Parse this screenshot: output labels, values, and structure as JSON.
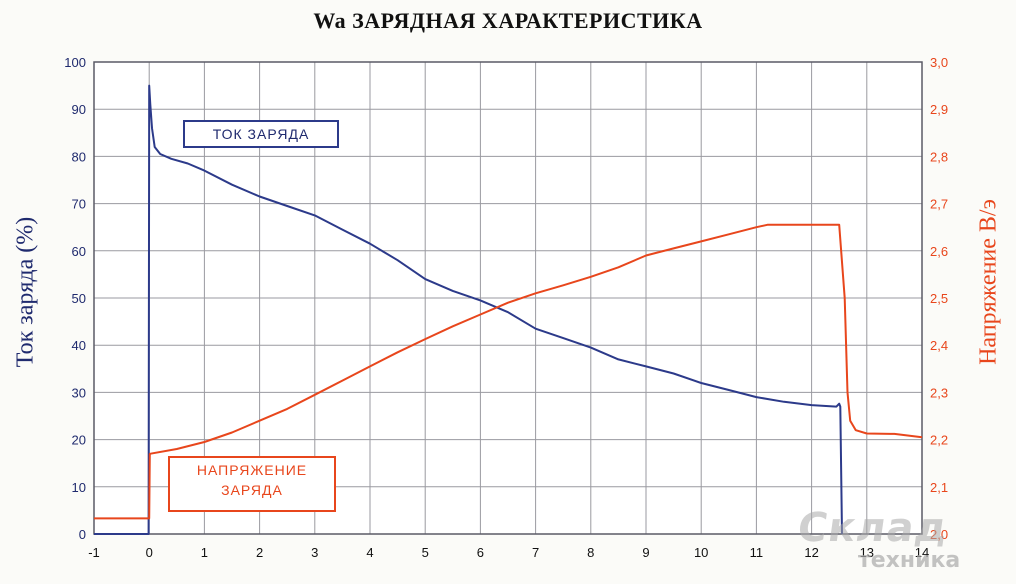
{
  "chart_data": {
    "type": "line",
    "title": "Wa ЗАРЯДНАЯ ХАРАКТЕРИСТИКА",
    "ylabel_left": "Ток заряда (%)",
    "ylabel_right": "Напряжение В/э",
    "xlim": [
      -1,
      14
    ],
    "ylim_left": [
      0,
      100
    ],
    "ylim_right": [
      2.0,
      3.0
    ],
    "x_ticks": [
      "-1",
      "0",
      "1",
      "2",
      "3",
      "4",
      "5",
      "6",
      "7",
      "8",
      "9",
      "10",
      "11",
      "12",
      "13",
      "14"
    ],
    "y_left_ticks": [
      "0",
      "10",
      "20",
      "30",
      "40",
      "50",
      "60",
      "70",
      "80",
      "90",
      "100"
    ],
    "y_right_ticks": [
      "2,0",
      "2,1",
      "2,2",
      "2,3",
      "2,4",
      "2,5",
      "2,6",
      "2,7",
      "2,8",
      "2,9",
      "3,0"
    ],
    "grid": true,
    "series": [
      {
        "name": "ТОК ЗАРЯДА",
        "axis": "left",
        "color": "#2c3a8a",
        "x": [
          -1,
          -0.01,
          0,
          0.02,
          0.05,
          0.1,
          0.2,
          0.4,
          0.7,
          1,
          1.5,
          2,
          2.5,
          3,
          3.5,
          4,
          4.5,
          5,
          5.5,
          6,
          6.5,
          7,
          7.5,
          8,
          8.5,
          9,
          9.5,
          10,
          10.5,
          11,
          11.5,
          12,
          12.45,
          12.5,
          12.52,
          12.55
        ],
        "y": [
          0,
          0,
          95,
          91,
          86,
          82,
          80.5,
          79.5,
          78.5,
          77,
          74,
          71.5,
          69.5,
          67.5,
          64.5,
          61.5,
          58,
          54,
          51.5,
          49.5,
          47,
          43.5,
          41.5,
          39.5,
          37,
          35.5,
          34,
          32,
          30.5,
          29,
          28,
          27.3,
          27,
          27.6,
          27,
          0
        ]
      },
      {
        "name": "НАПРЯЖЕНИЕ ЗАРЯДА",
        "axis": "right",
        "color": "#e8461c",
        "x": [
          -1,
          -0.01,
          0,
          0.01,
          0.5,
          1,
          1.5,
          2,
          2.5,
          3,
          3.5,
          4,
          4.5,
          5,
          5.5,
          6,
          6.5,
          7,
          7.5,
          8,
          8.5,
          9,
          9.5,
          10,
          10.5,
          11,
          11.2,
          12.5,
          12.6,
          12.65,
          12.7,
          12.8,
          13,
          13.5,
          14
        ],
        "y": [
          2.033,
          2.033,
          2.033,
          2.17,
          2.18,
          2.195,
          2.215,
          2.24,
          2.265,
          2.295,
          2.325,
          2.355,
          2.385,
          2.413,
          2.44,
          2.465,
          2.49,
          2.51,
          2.527,
          2.545,
          2.565,
          2.59,
          2.605,
          2.62,
          2.635,
          2.65,
          2.655,
          2.655,
          2.5,
          2.3,
          2.24,
          2.22,
          2.213,
          2.212,
          2.205
        ]
      }
    ]
  },
  "labels": {
    "current_box": "ТОК ЗАРЯДА",
    "voltage_box_line1": "НАПРЯЖЕНИЕ",
    "voltage_box_line2": "ЗАРЯДА"
  },
  "watermark": {
    "line1": "Склад",
    "line2": "техника"
  }
}
